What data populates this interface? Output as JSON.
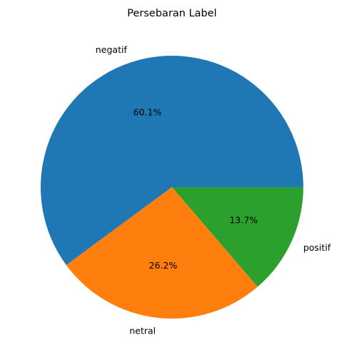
{
  "chart_data": {
    "type": "pie",
    "title": "Persebaran Label",
    "categories": [
      "negatif",
      "netral",
      "positif"
    ],
    "values": [
      60.1,
      26.2,
      13.7
    ],
    "percent_labels": [
      "60.1%",
      "26.2%",
      "13.7%"
    ],
    "colors": [
      "#1f77b4",
      "#ff7f0e",
      "#2ca02c"
    ],
    "start_angle_deg": 0,
    "direction": "counterclockwise",
    "legend": "none"
  }
}
